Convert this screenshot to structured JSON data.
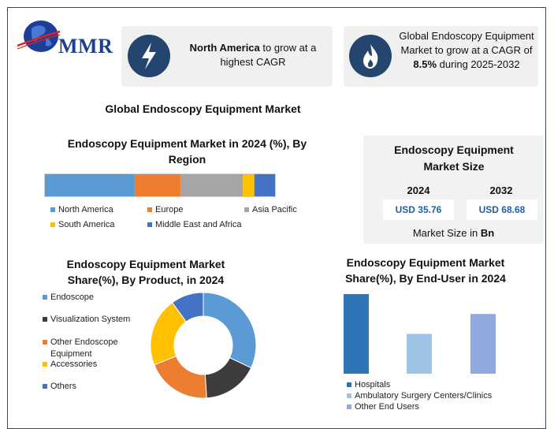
{
  "logo": {
    "text": "MMR"
  },
  "highlights": [
    {
      "icon": "lightning-icon",
      "bold": "North America",
      "rest": " to grow at a highest CAGR"
    },
    {
      "icon": "flame-icon",
      "pre": "Global Endoscopy Equipment Market to grow at a CAGR of ",
      "bold": "8.5%",
      "post": " during 2025-2032"
    }
  ],
  "main_title": "Global Endoscopy Equipment Market",
  "colors": {
    "blue": "#5b9bd5",
    "orange": "#ed7d31",
    "gray": "#a5a5a5",
    "yellow": "#ffc000",
    "darkblue": "#4472c4",
    "darkgray": "#3c3c3c",
    "icon_bg": "#24466e",
    "enduser": [
      "#2e75b6",
      "#9dc3e6",
      "#8faadc"
    ]
  },
  "region_chart": {
    "title": "Endoscopy Equipment Market in 2024 (%), By Region",
    "legend_row1": [
      "North America",
      "Europe",
      "Asia Pacific"
    ],
    "legend_row2": [
      "South America",
      "Middle East and Africa"
    ]
  },
  "size_panel": {
    "title": "Endoscopy Equipment Market Size",
    "year1": "2024",
    "year2": "2032",
    "value1": "USD 35.76",
    "value2": "USD 68.68",
    "footer_pre": "Market Size in ",
    "footer_bold": "Bn"
  },
  "product_chart": {
    "title": "Endoscopy Equipment Market Share(%), By Product, in 2024",
    "legend": [
      "Endoscope",
      "Visualization System",
      "Other Endoscope Equipment",
      "Accessories",
      "Others"
    ]
  },
  "enduser_chart": {
    "title": "Endoscopy Equipment Market Share(%), By  End-User in 2024",
    "legend": [
      "Hospitals",
      "Ambulatory Surgery Centers/Clinics",
      "Other End Users"
    ]
  },
  "chart_data": [
    {
      "type": "bar",
      "orientation": "horizontal-stacked",
      "title": "Endoscopy Equipment Market in 2024 (%), By Region",
      "series": [
        {
          "name": "North America",
          "values": [
            39
          ]
        },
        {
          "name": "Europe",
          "values": [
            20
          ]
        },
        {
          "name": "Asia Pacific",
          "values": [
            27
          ]
        },
        {
          "name": "South America",
          "values": [
            5
          ]
        },
        {
          "name": "Middle East and Africa",
          "values": [
            9
          ]
        }
      ],
      "legend_position": "bottom"
    },
    {
      "type": "pie",
      "donut": true,
      "title": "Endoscopy Equipment Market Share(%), By Product, in 2024",
      "categories": [
        "Endoscope",
        "Visualization System",
        "Other Endoscope Equipment",
        "Accessories",
        "Others"
      ],
      "values": [
        32,
        17,
        20,
        21,
        10
      ],
      "legend_position": "left"
    },
    {
      "type": "bar",
      "title": "Endoscopy Equipment Market Share(%), By  End-User in 2024",
      "categories": [
        "Hospitals",
        "Ambulatory Surgery Centers/Clinics",
        "Other End Users"
      ],
      "values": [
        100,
        50,
        75
      ],
      "legend_position": "bottom"
    }
  ]
}
